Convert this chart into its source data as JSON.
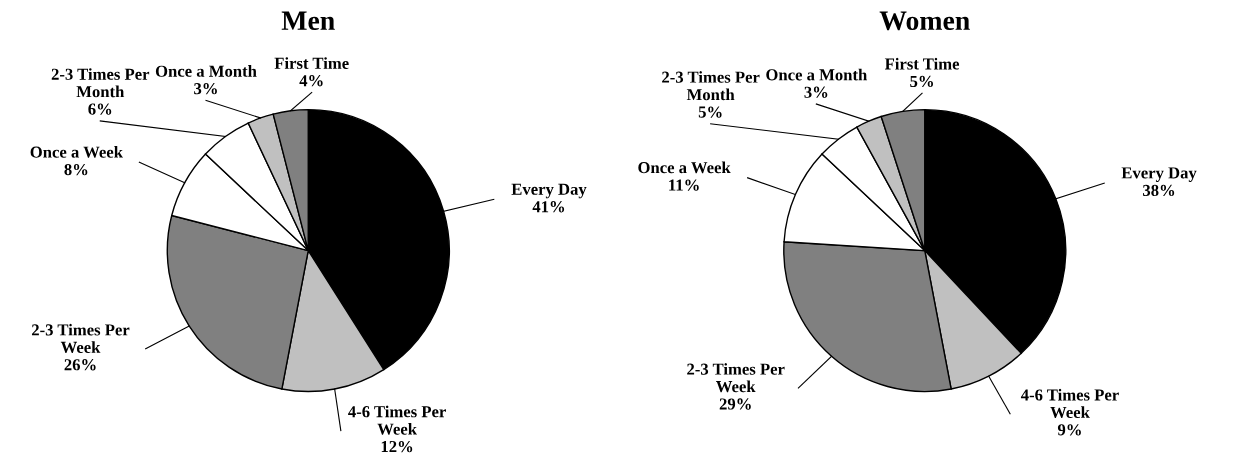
{
  "chart_data": [
    {
      "type": "pie",
      "title": "Men",
      "categories": [
        "Every Day",
        "4-6 Times Per\nWeek",
        "2-3 Times Per\nWeek",
        "Once a Week",
        "2-3 Times Per\nMonth",
        "Once a Month",
        "First Time"
      ],
      "values": [
        41,
        12,
        26,
        8,
        6,
        3,
        4
      ],
      "value_labels": [
        "41%",
        "12%",
        "26%",
        "8%",
        "6%",
        "3%",
        "4%"
      ],
      "colors": [
        "#000000",
        "#c0c0c0",
        "#808080",
        "#ffffff",
        "#ffffff",
        "#c0c0c0",
        "#808080"
      ]
    },
    {
      "type": "pie",
      "title": "Women",
      "categories": [
        "Every Day",
        "4-6 Times Per\nWeek",
        "2-3 Times Per\nWeek",
        "Once a Week",
        "2-3 Times Per\nMonth",
        "Once a Month",
        "First Time"
      ],
      "values": [
        38,
        9,
        29,
        11,
        5,
        3,
        5
      ],
      "value_labels": [
        "38%",
        "9%",
        "29%",
        "11%",
        "5%",
        "3%",
        "5%"
      ],
      "colors": [
        "#000000",
        "#c0c0c0",
        "#808080",
        "#ffffff",
        "#ffffff",
        "#c0c0c0",
        "#808080"
      ]
    }
  ]
}
